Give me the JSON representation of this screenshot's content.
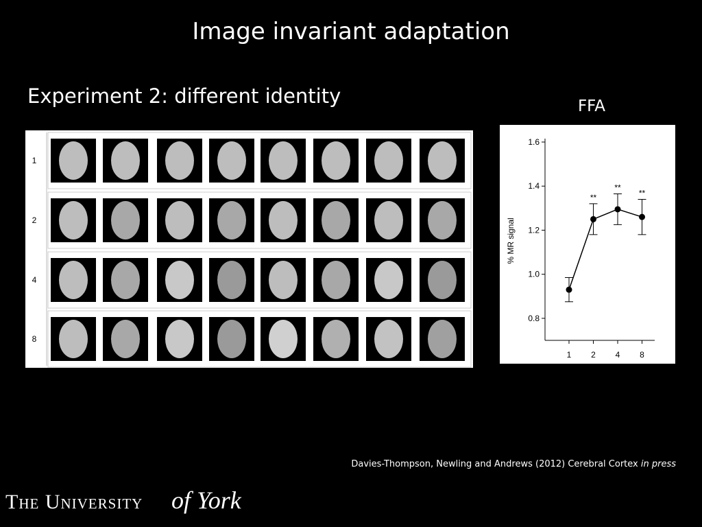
{
  "slide": {
    "title": "Image invariant adaptation",
    "subtitle": "Experiment 2: different identity",
    "row_labels": [
      "1",
      "2",
      "4",
      "8"
    ],
    "citation": "Davies-Thompson, Newling and Andrews (2012) Cerebral Cortex",
    "citation_italic": "in press",
    "logo_main": "The University",
    "logo_script": "of York"
  },
  "chart_data": {
    "type": "line",
    "title": "FFA",
    "y_label": "% MR signal",
    "categories": [
      "1",
      "2",
      "4",
      "8"
    ],
    "values": [
      0.93,
      1.25,
      1.295,
      1.26
    ],
    "errors": [
      0.055,
      0.07,
      0.07,
      0.08
    ],
    "annotations": [
      null,
      "**",
      "**",
      "**"
    ],
    "color": "#000000",
    "ylim": [
      0.7,
      1.6
    ],
    "yticks": [
      0.8,
      {
        "value": 1,
        "label": "1.0"
      },
      1.2,
      1.4,
      1.6
    ],
    "grid": false
  }
}
